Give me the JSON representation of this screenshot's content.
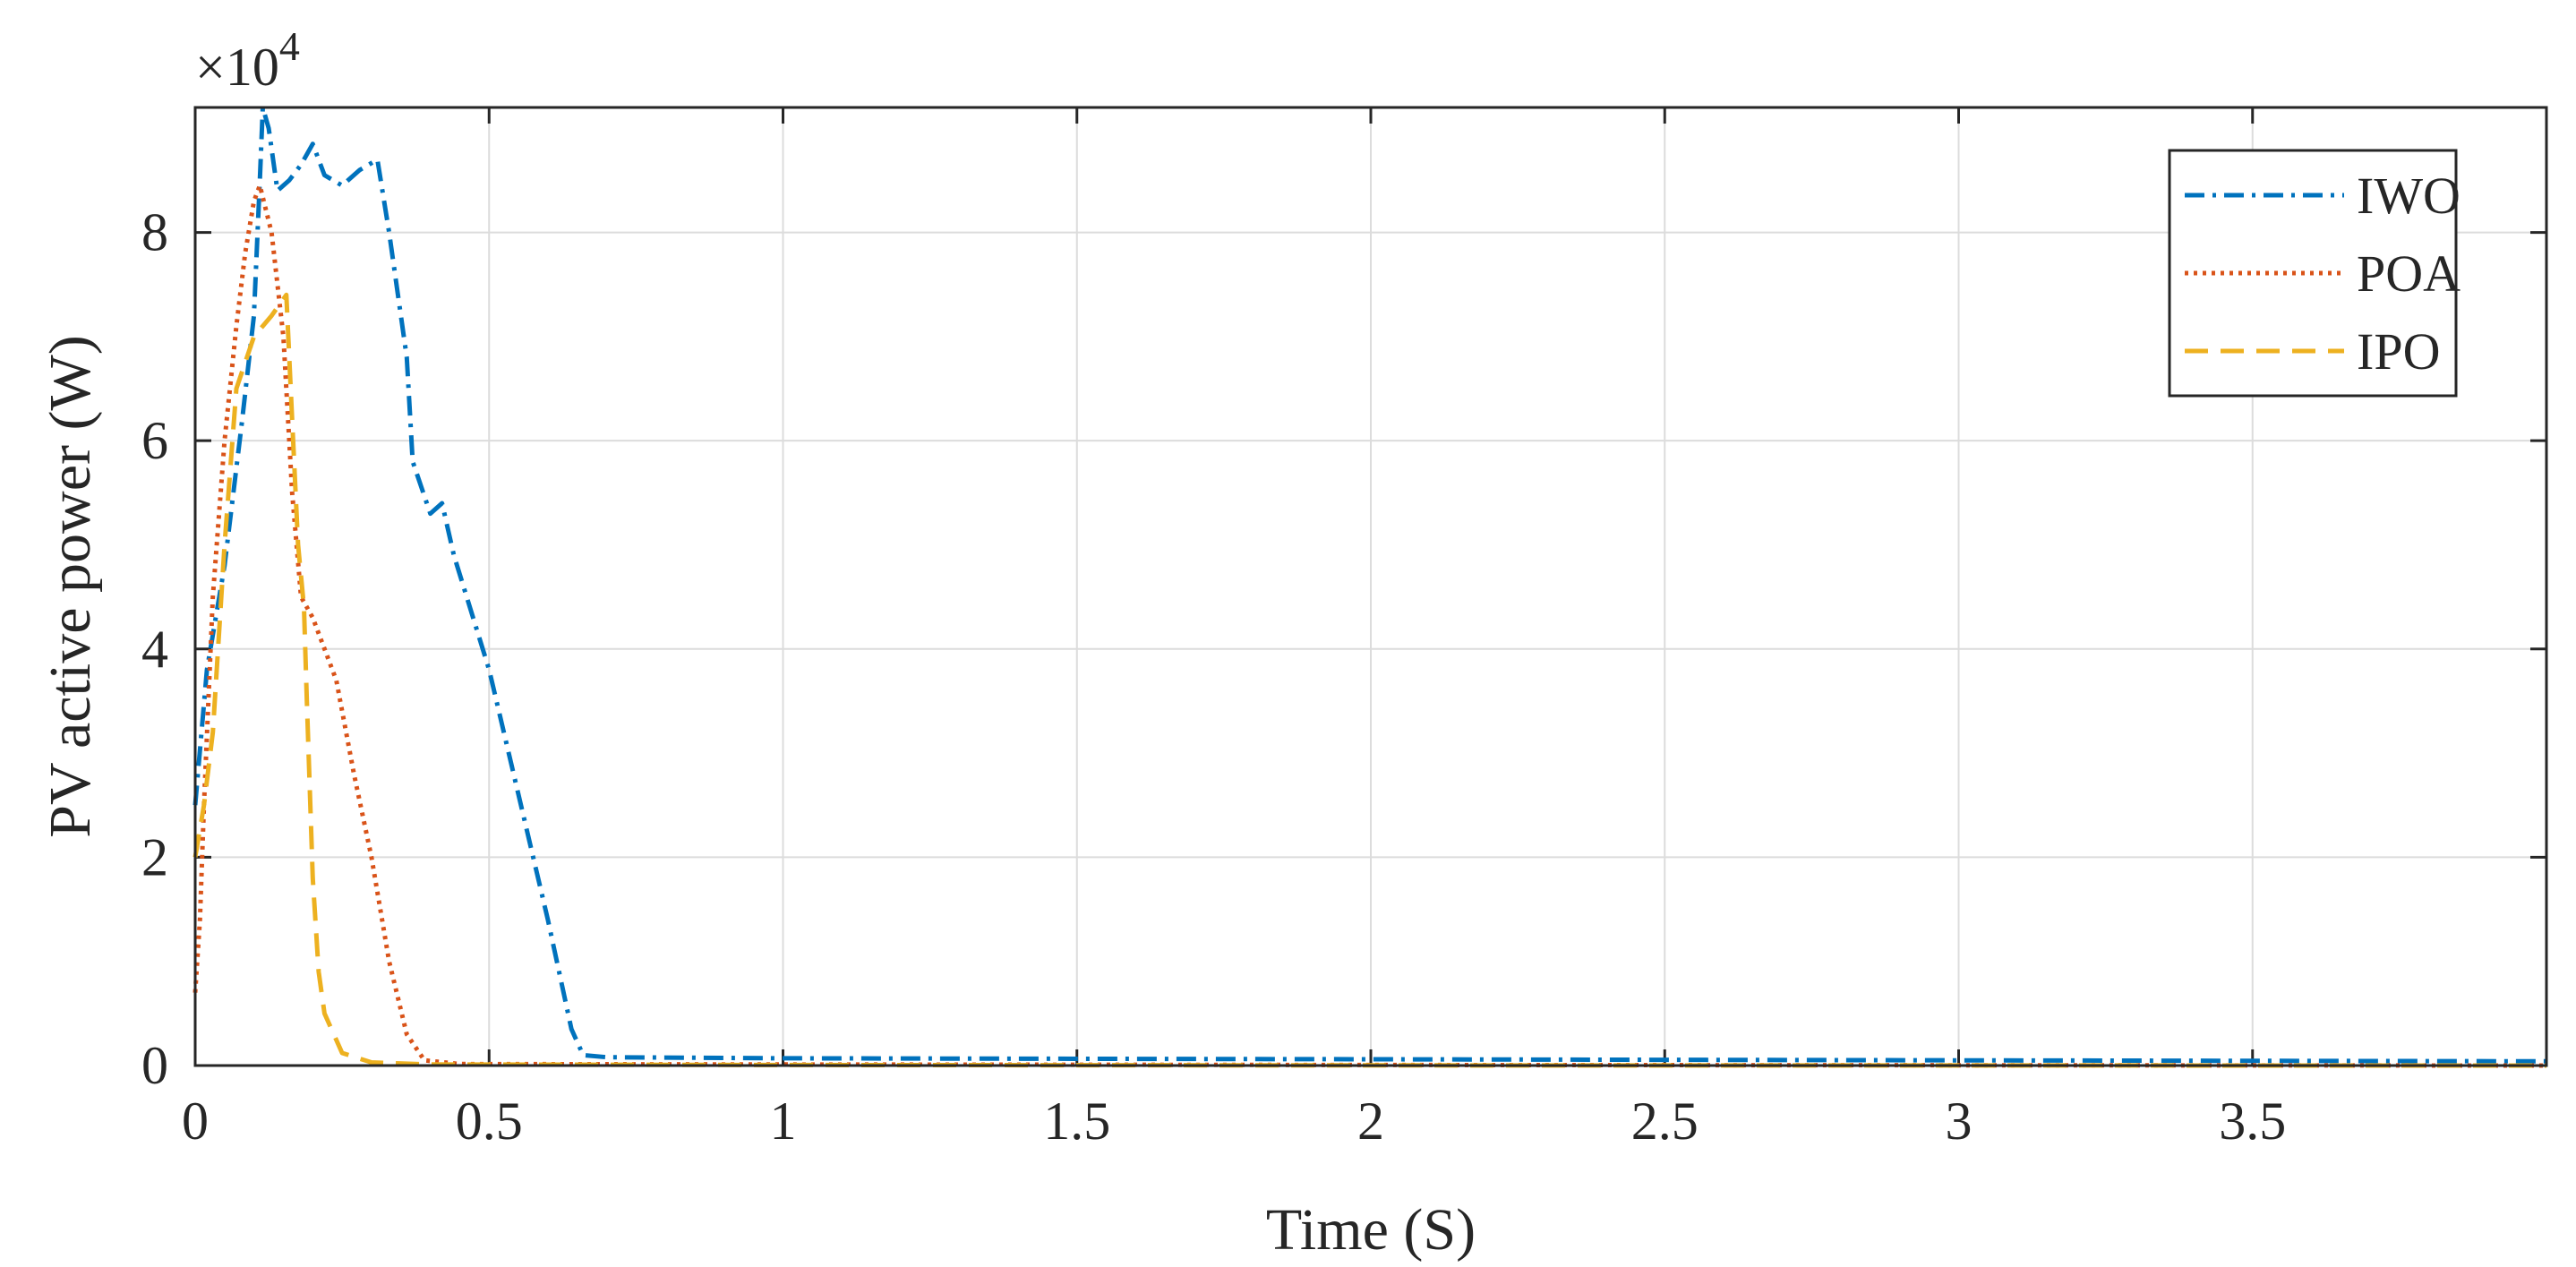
{
  "chart_data": {
    "type": "line",
    "title": "",
    "xlabel": "Time (S)",
    "ylabel": "PV active power (W)",
    "y_exponent_label": "×10",
    "y_exponent_power": "4",
    "xlim": [
      0,
      4
    ],
    "ylim": [
      0,
      92000
    ],
    "xticks": [
      0,
      0.5,
      1,
      1.5,
      2,
      2.5,
      3,
      3.5
    ],
    "xtick_labels": [
      "0",
      "0.5",
      "1",
      "1.5",
      "2",
      "2.5",
      "3",
      "3.5"
    ],
    "yticks": [
      0,
      20000,
      40000,
      60000,
      80000
    ],
    "ytick_labels": [
      "0",
      "2",
      "4",
      "6",
      "8"
    ],
    "grid": true,
    "legend_position": "top-right",
    "series": [
      {
        "name": "IWO",
        "color": "#0072BD",
        "dash": "dash-dot",
        "points": [
          [
            0,
            25000
          ],
          [
            0.02,
            38000
          ],
          [
            0.05,
            48000
          ],
          [
            0.08,
            62000
          ],
          [
            0.1,
            72000
          ],
          [
            0.11,
            85000
          ],
          [
            0.115,
            92000
          ],
          [
            0.125,
            90000
          ],
          [
            0.14,
            84000
          ],
          [
            0.16,
            85000
          ],
          [
            0.18,
            86500
          ],
          [
            0.2,
            88500
          ],
          [
            0.22,
            85500
          ],
          [
            0.25,
            84500
          ],
          [
            0.28,
            86000
          ],
          [
            0.31,
            87000
          ],
          [
            0.33,
            80000
          ],
          [
            0.36,
            68000
          ],
          [
            0.37,
            58000
          ],
          [
            0.4,
            53000
          ],
          [
            0.42,
            54000
          ],
          [
            0.44,
            49000
          ],
          [
            0.5,
            38000
          ],
          [
            0.55,
            26000
          ],
          [
            0.6,
            14000
          ],
          [
            0.64,
            3500
          ],
          [
            0.66,
            1000
          ],
          [
            0.7,
            800
          ],
          [
            1,
            700
          ],
          [
            2,
            600
          ],
          [
            3,
            500
          ],
          [
            4,
            400
          ]
        ]
      },
      {
        "name": "POA",
        "color": "#D95319",
        "dash": "dotted",
        "points": [
          [
            0,
            7000
          ],
          [
            0.008,
            14000
          ],
          [
            0.015,
            25000
          ],
          [
            0.03,
            45000
          ],
          [
            0.05,
            60000
          ],
          [
            0.07,
            71000
          ],
          [
            0.085,
            78000
          ],
          [
            0.1,
            83000
          ],
          [
            0.11,
            84500
          ],
          [
            0.13,
            80000
          ],
          [
            0.15,
            70000
          ],
          [
            0.165,
            55000
          ],
          [
            0.18,
            45000
          ],
          [
            0.2,
            43000
          ],
          [
            0.24,
            37000
          ],
          [
            0.27,
            28000
          ],
          [
            0.3,
            20000
          ],
          [
            0.33,
            10000
          ],
          [
            0.36,
            3000
          ],
          [
            0.39,
            500
          ],
          [
            0.45,
            150
          ],
          [
            1,
            100
          ],
          [
            2,
            50
          ],
          [
            4,
            0
          ]
        ]
      },
      {
        "name": "IPO",
        "color": "#EDB120",
        "dash": "dashed",
        "points": [
          [
            0,
            20000
          ],
          [
            0.015,
            25000
          ],
          [
            0.03,
            32000
          ],
          [
            0.05,
            50000
          ],
          [
            0.07,
            65000
          ],
          [
            0.1,
            70000
          ],
          [
            0.13,
            72000
          ],
          [
            0.155,
            74000
          ],
          [
            0.165,
            62000
          ],
          [
            0.175,
            50000
          ],
          [
            0.185,
            44000
          ],
          [
            0.19,
            35000
          ],
          [
            0.2,
            18000
          ],
          [
            0.21,
            9000
          ],
          [
            0.22,
            5000
          ],
          [
            0.25,
            1200
          ],
          [
            0.3,
            300
          ],
          [
            0.4,
            100
          ],
          [
            1,
            50
          ],
          [
            2,
            20
          ],
          [
            4,
            0
          ]
        ]
      }
    ]
  }
}
